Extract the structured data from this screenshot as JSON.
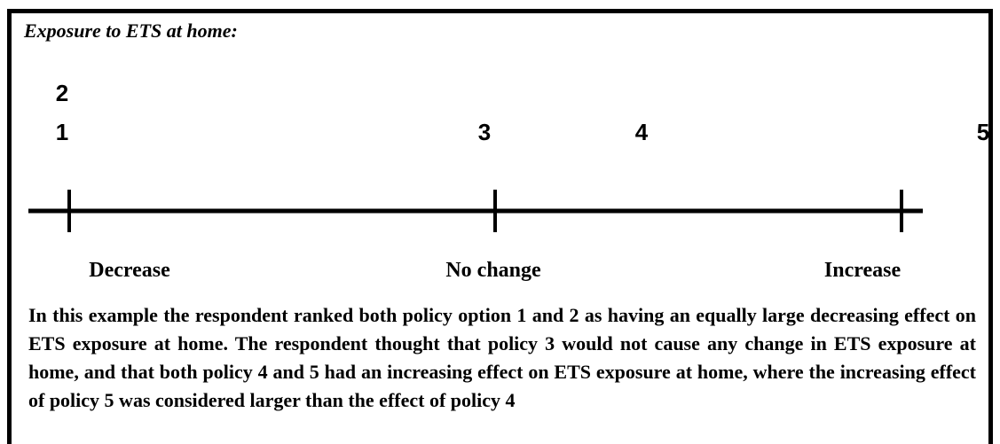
{
  "title": "Exposure to ETS at home:",
  "markers": [
    "2",
    "1",
    "3",
    "4",
    "5"
  ],
  "scale_labels": [
    "Decrease",
    "No change",
    "Increase"
  ],
  "caption": "In this example the respondent ranked both policy option 1 and 2 as having an equally large decreasing effect on ETS exposure at home. The respondent thought that policy 3 would not cause any change in ETS exposure at home, and that both policy 4 and 5 had an increasing effect on ETS exposure at home, where the increasing effect of policy 5 was considered larger than the effect of policy 4"
}
